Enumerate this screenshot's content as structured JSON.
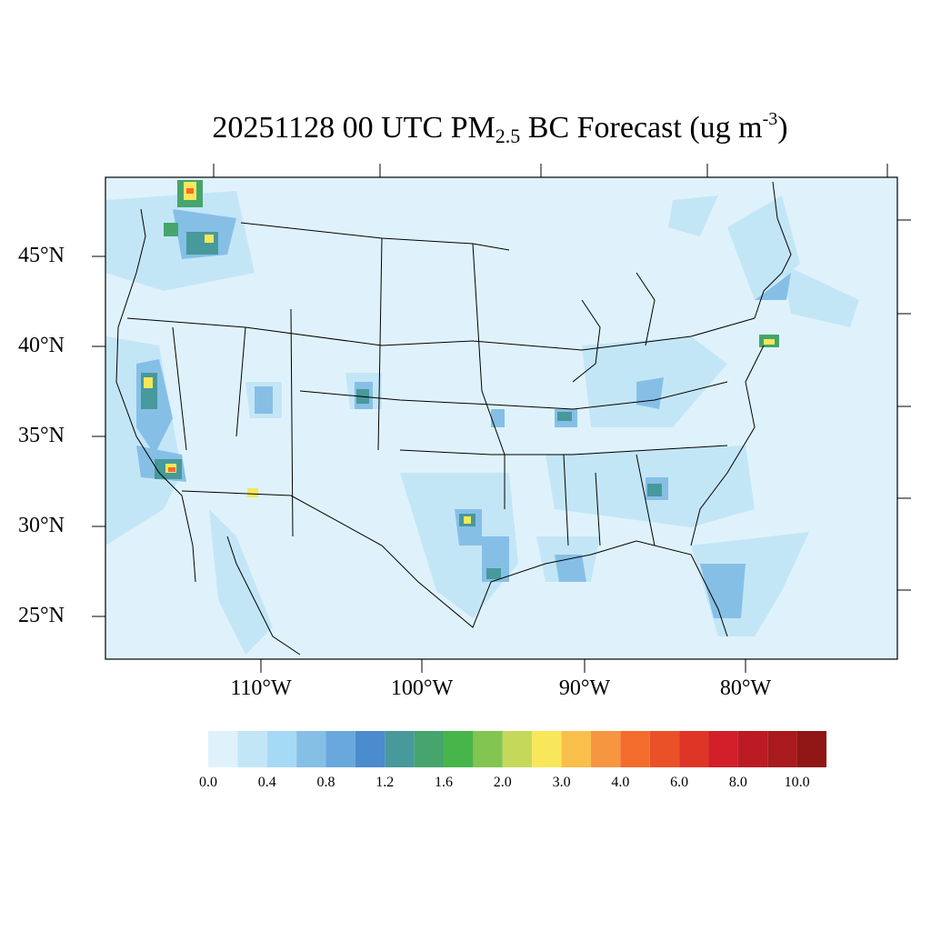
{
  "title": {
    "prefix": "20251128 00 UTC PM",
    "subscript": "2.5",
    "middle": " BC Forecast (ug m",
    "superscript": "-3",
    "suffix": ")"
  },
  "map_data": {
    "projection": "lambert-conformal",
    "region": "CONUS",
    "lat_labels": [
      "45°N",
      "40°N",
      "35°N",
      "30°N",
      "25°N"
    ],
    "lon_labels": [
      "110°W",
      "100°W",
      "90°W",
      "80°W"
    ],
    "background_level_color": "#dff2fb"
  },
  "colorbar": {
    "colors": [
      "#dff2fb",
      "#c3e6f7",
      "#a6d9f5",
      "#86bfe6",
      "#68a8dc",
      "#4a8ccd",
      "#47999b",
      "#45a56c",
      "#47b54a",
      "#82c551",
      "#c5d85a",
      "#f8e75a",
      "#f8bf4a",
      "#f69640",
      "#f46c2c",
      "#eb5129",
      "#df3527",
      "#d21f2a",
      "#bb1b23",
      "#a81a1e",
      "#911616"
    ],
    "tick_labels": [
      "0.0",
      "0.4",
      "0.8",
      "1.2",
      "1.6",
      "2.0",
      "3.0",
      "4.0",
      "6.0",
      "8.0",
      "10.0"
    ]
  }
}
